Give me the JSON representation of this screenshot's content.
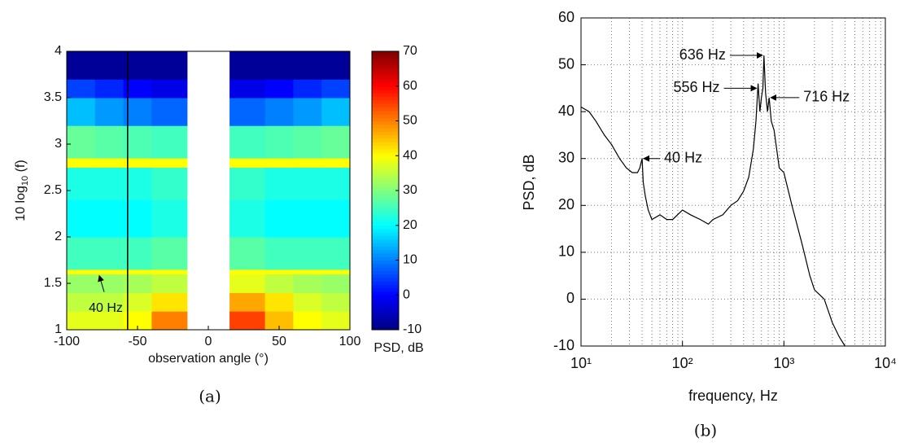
{
  "chart_data": [
    {
      "type": "heatmap",
      "caption": "(a)",
      "xlabel": "observation angle (°)",
      "ylabel": [
        "10 log",
        "10",
        " (f)"
      ],
      "xlim": [
        -100,
        100
      ],
      "xticks": [
        -100,
        -50,
        0,
        50,
        100
      ],
      "ylim": [
        1,
        4
      ],
      "yticks": [
        1,
        1.5,
        2,
        2.5,
        3,
        3.5,
        4
      ],
      "x_bins": [
        -100,
        -80,
        -60,
        -40,
        -15,
        15,
        40,
        60,
        80,
        100
      ],
      "y_bins": [
        1,
        1.2,
        1.4,
        1.6,
        1.65,
        2,
        2.4,
        2.75,
        2.85,
        3.2,
        3.5,
        3.7,
        4
      ],
      "values": [
        [
          38,
          38,
          40,
          50,
          null,
          55,
          45,
          40,
          38
        ],
        [
          35,
          35,
          37,
          42,
          null,
          47,
          42,
          37,
          35
        ],
        [
          32,
          32,
          33,
          35,
          null,
          38,
          35,
          33,
          32
        ],
        [
          40,
          40,
          40,
          40,
          null,
          40,
          40,
          40,
          40
        ],
        [
          25,
          25,
          25,
          27,
          null,
          27,
          25,
          25,
          25
        ],
        [
          20,
          20,
          20,
          22,
          null,
          22,
          20,
          20,
          20
        ],
        [
          22,
          22,
          22,
          24,
          null,
          24,
          22,
          22,
          22
        ],
        [
          40,
          40,
          40,
          40,
          null,
          40,
          40,
          40,
          40
        ],
        [
          28,
          27,
          26,
          25,
          null,
          25,
          26,
          27,
          28
        ],
        [
          15,
          12,
          10,
          8,
          null,
          8,
          10,
          12,
          15
        ],
        [
          5,
          3,
          0,
          -2,
          null,
          -2,
          0,
          3,
          5
        ],
        [
          -8,
          -8,
          -8,
          -8,
          null,
          -8,
          -8,
          -8,
          -8
        ]
      ],
      "vline_x": -57,
      "clim": [
        -10,
        70
      ],
      "cticks": [
        -10,
        0,
        10,
        20,
        30,
        40,
        50,
        60,
        70
      ],
      "colorbar_label": "PSD, dB",
      "annotations": [
        {
          "text": "40 Hz",
          "x": -77,
          "y": 1.6
        }
      ]
    },
    {
      "type": "line",
      "caption": "(b)",
      "xlabel": "frequency, Hz",
      "ylabel": "PSD, dB",
      "xlog": true,
      "grid": true,
      "color": "#000000",
      "xlim": [
        10,
        10000
      ],
      "xticks": [
        {
          "value": 10,
          "label": "10¹"
        },
        {
          "value": 100,
          "label": "10²"
        },
        {
          "value": 1000,
          "label": "10³"
        },
        {
          "value": 10000,
          "label": "10⁴"
        }
      ],
      "xminor_ticks": [
        20,
        30,
        40,
        50,
        60,
        70,
        80,
        90,
        200,
        300,
        400,
        500,
        600,
        700,
        800,
        900,
        2000,
        3000,
        4000,
        5000,
        6000,
        7000,
        8000,
        9000
      ],
      "ylim": [
        -10,
        60
      ],
      "yticks": [
        -10,
        0,
        10,
        20,
        30,
        40,
        50,
        60
      ],
      "x": [
        10,
        12,
        14,
        17,
        20,
        24,
        28,
        32,
        36,
        38,
        40,
        41,
        43,
        46,
        50,
        60,
        70,
        80,
        100,
        120,
        150,
        180,
        200,
        250,
        300,
        350,
        400,
        450,
        500,
        530,
        556,
        580,
        600,
        620,
        636,
        660,
        690,
        716,
        750,
        800,
        900,
        1000,
        1200,
        1500,
        1800,
        2000,
        2500,
        3000,
        3500,
        4000
      ],
      "values": [
        41,
        40,
        38,
        35,
        33,
        30,
        28,
        27,
        27,
        28,
        30,
        25,
        22,
        19,
        17,
        18,
        17,
        17,
        19,
        18,
        17,
        16,
        17,
        18,
        20,
        21,
        23,
        26,
        32,
        38,
        46,
        40,
        43,
        45,
        52,
        44,
        40,
        43,
        38,
        36,
        28,
        27,
        20,
        12,
        5,
        2,
        0,
        -5,
        -8,
        -10
      ],
      "annotations": [
        {
          "text": "636 Hz",
          "x": 636,
          "y": 52
        },
        {
          "text": "556 Hz",
          "x": 556,
          "y": 45
        },
        {
          "text": "716 Hz",
          "x": 716,
          "y": 43
        },
        {
          "text": "40 Hz",
          "x": 40,
          "y": 30
        }
      ]
    }
  ]
}
